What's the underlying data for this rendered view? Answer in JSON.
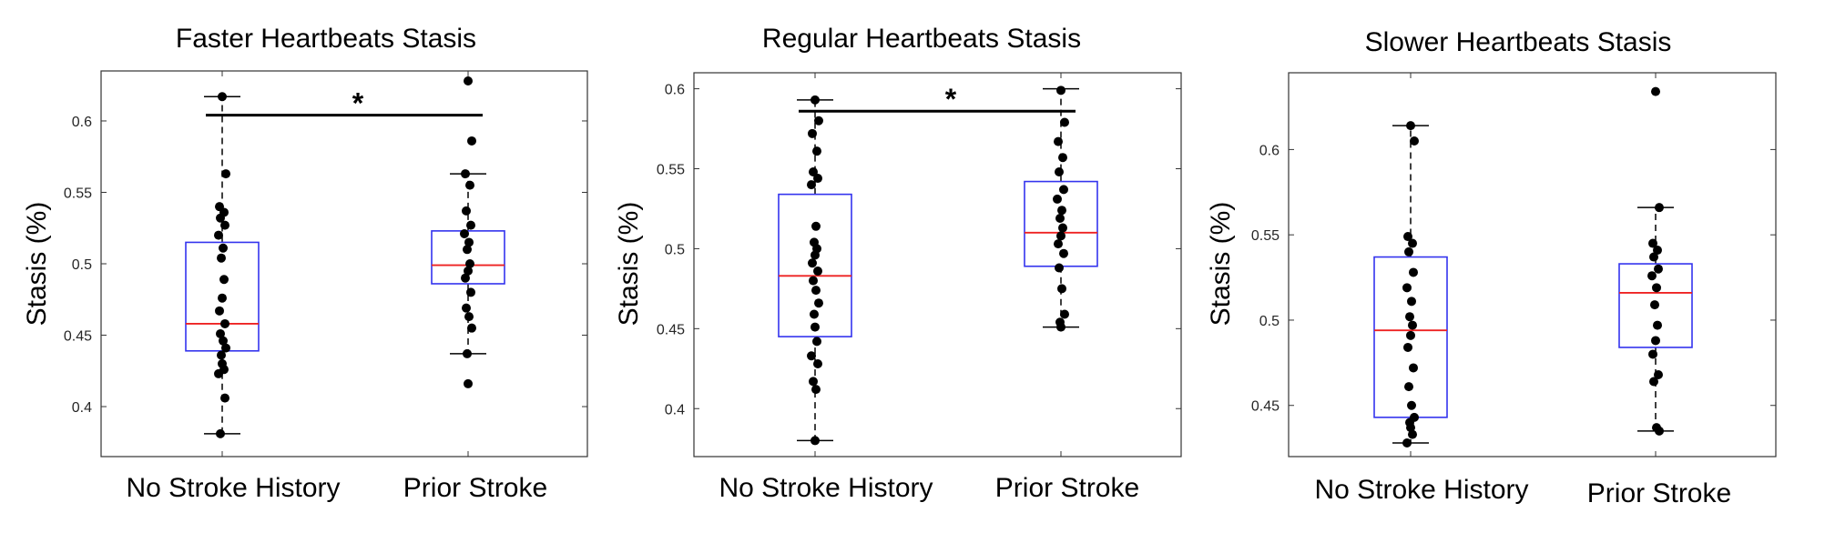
{
  "chart_data": [
    {
      "type": "box",
      "title": "Faster Heartbeats Stasis",
      "ylabel": "Stasis (%)",
      "categories": [
        "No Stroke History",
        "Prior Stroke"
      ],
      "ylim": [
        0.365,
        0.635
      ],
      "yticks": [
        0.4,
        0.45,
        0.5,
        0.55,
        0.6
      ],
      "ytick_labels": [
        "0.4",
        "0.45",
        "0.5",
        "0.55",
        "0.6"
      ],
      "boxes": [
        {
          "category": "No Stroke History",
          "q1": 0.439,
          "median": 0.458,
          "q3": 0.515,
          "whisker_low": 0.381,
          "whisker_high": 0.617,
          "points": [
            0.617,
            0.563,
            0.54,
            0.536,
            0.532,
            0.527,
            0.52,
            0.511,
            0.504,
            0.489,
            0.476,
            0.467,
            0.458,
            0.451,
            0.446,
            0.441,
            0.436,
            0.43,
            0.426,
            0.423,
            0.406,
            0.381
          ]
        },
        {
          "category": "Prior Stroke",
          "q1": 0.486,
          "median": 0.499,
          "q3": 0.523,
          "whisker_low": 0.437,
          "whisker_high": 0.563,
          "points": [
            0.628,
            0.586,
            0.563,
            0.555,
            0.537,
            0.527,
            0.521,
            0.515,
            0.51,
            0.5,
            0.495,
            0.49,
            0.48,
            0.469,
            0.463,
            0.455,
            0.437,
            0.416
          ]
        }
      ],
      "significance": {
        "label": "*",
        "y": 0.604
      }
    },
    {
      "type": "box",
      "title": "Regular Heartbeats Stasis",
      "ylabel": "Stasis (%)",
      "categories": [
        "No Stroke History",
        "Prior Stroke"
      ],
      "ylim": [
        0.37,
        0.61
      ],
      "yticks": [
        0.4,
        0.45,
        0.5,
        0.55,
        0.6
      ],
      "ytick_labels": [
        "0.4",
        "0.45",
        "0.5",
        "0.55",
        "0.6"
      ],
      "boxes": [
        {
          "category": "No Stroke History",
          "q1": 0.445,
          "median": 0.483,
          "q3": 0.534,
          "whisker_low": 0.38,
          "whisker_high": 0.593,
          "points": [
            0.593,
            0.58,
            0.572,
            0.561,
            0.548,
            0.544,
            0.54,
            0.514,
            0.504,
            0.5,
            0.496,
            0.491,
            0.486,
            0.48,
            0.474,
            0.466,
            0.459,
            0.451,
            0.442,
            0.433,
            0.428,
            0.417,
            0.412,
            0.38
          ]
        },
        {
          "category": "Prior Stroke",
          "q1": 0.489,
          "median": 0.51,
          "q3": 0.542,
          "whisker_low": 0.451,
          "whisker_high": 0.6,
          "points": [
            0.599,
            0.579,
            0.567,
            0.557,
            0.548,
            0.537,
            0.531,
            0.524,
            0.519,
            0.513,
            0.508,
            0.503,
            0.497,
            0.488,
            0.475,
            0.459,
            0.454,
            0.451
          ]
        }
      ],
      "significance": {
        "label": "*",
        "y": 0.586
      }
    },
    {
      "type": "box",
      "title": "Slower Heartbeats Stasis",
      "ylabel": "Stasis (%)",
      "categories": [
        "No Stroke History",
        "Prior Stroke"
      ],
      "ylim": [
        0.42,
        0.645
      ],
      "yticks": [
        0.45,
        0.5,
        0.55,
        0.6
      ],
      "ytick_labels": [
        "0.45",
        "0.5",
        "0.55",
        "0.6"
      ],
      "boxes": [
        {
          "category": "No Stroke History",
          "q1": 0.443,
          "median": 0.494,
          "q3": 0.537,
          "whisker_low": 0.428,
          "whisker_high": 0.614,
          "points": [
            0.614,
            0.605,
            0.549,
            0.545,
            0.54,
            0.528,
            0.519,
            0.511,
            0.502,
            0.497,
            0.491,
            0.484,
            0.472,
            0.461,
            0.45,
            0.443,
            0.44,
            0.437,
            0.433,
            0.428
          ]
        },
        {
          "category": "Prior Stroke",
          "q1": 0.484,
          "median": 0.516,
          "q3": 0.533,
          "whisker_low": 0.435,
          "whisker_high": 0.566,
          "points": [
            0.634,
            0.566,
            0.545,
            0.541,
            0.537,
            0.53,
            0.526,
            0.519,
            0.509,
            0.497,
            0.488,
            0.48,
            0.468,
            0.464,
            0.437,
            0.435
          ]
        }
      ]
    }
  ],
  "colors": {
    "box": "#3333ee",
    "median": "#ee2222",
    "points": "#000000",
    "whisker": "#000000",
    "axes": "#333333",
    "significance": "#000000"
  }
}
